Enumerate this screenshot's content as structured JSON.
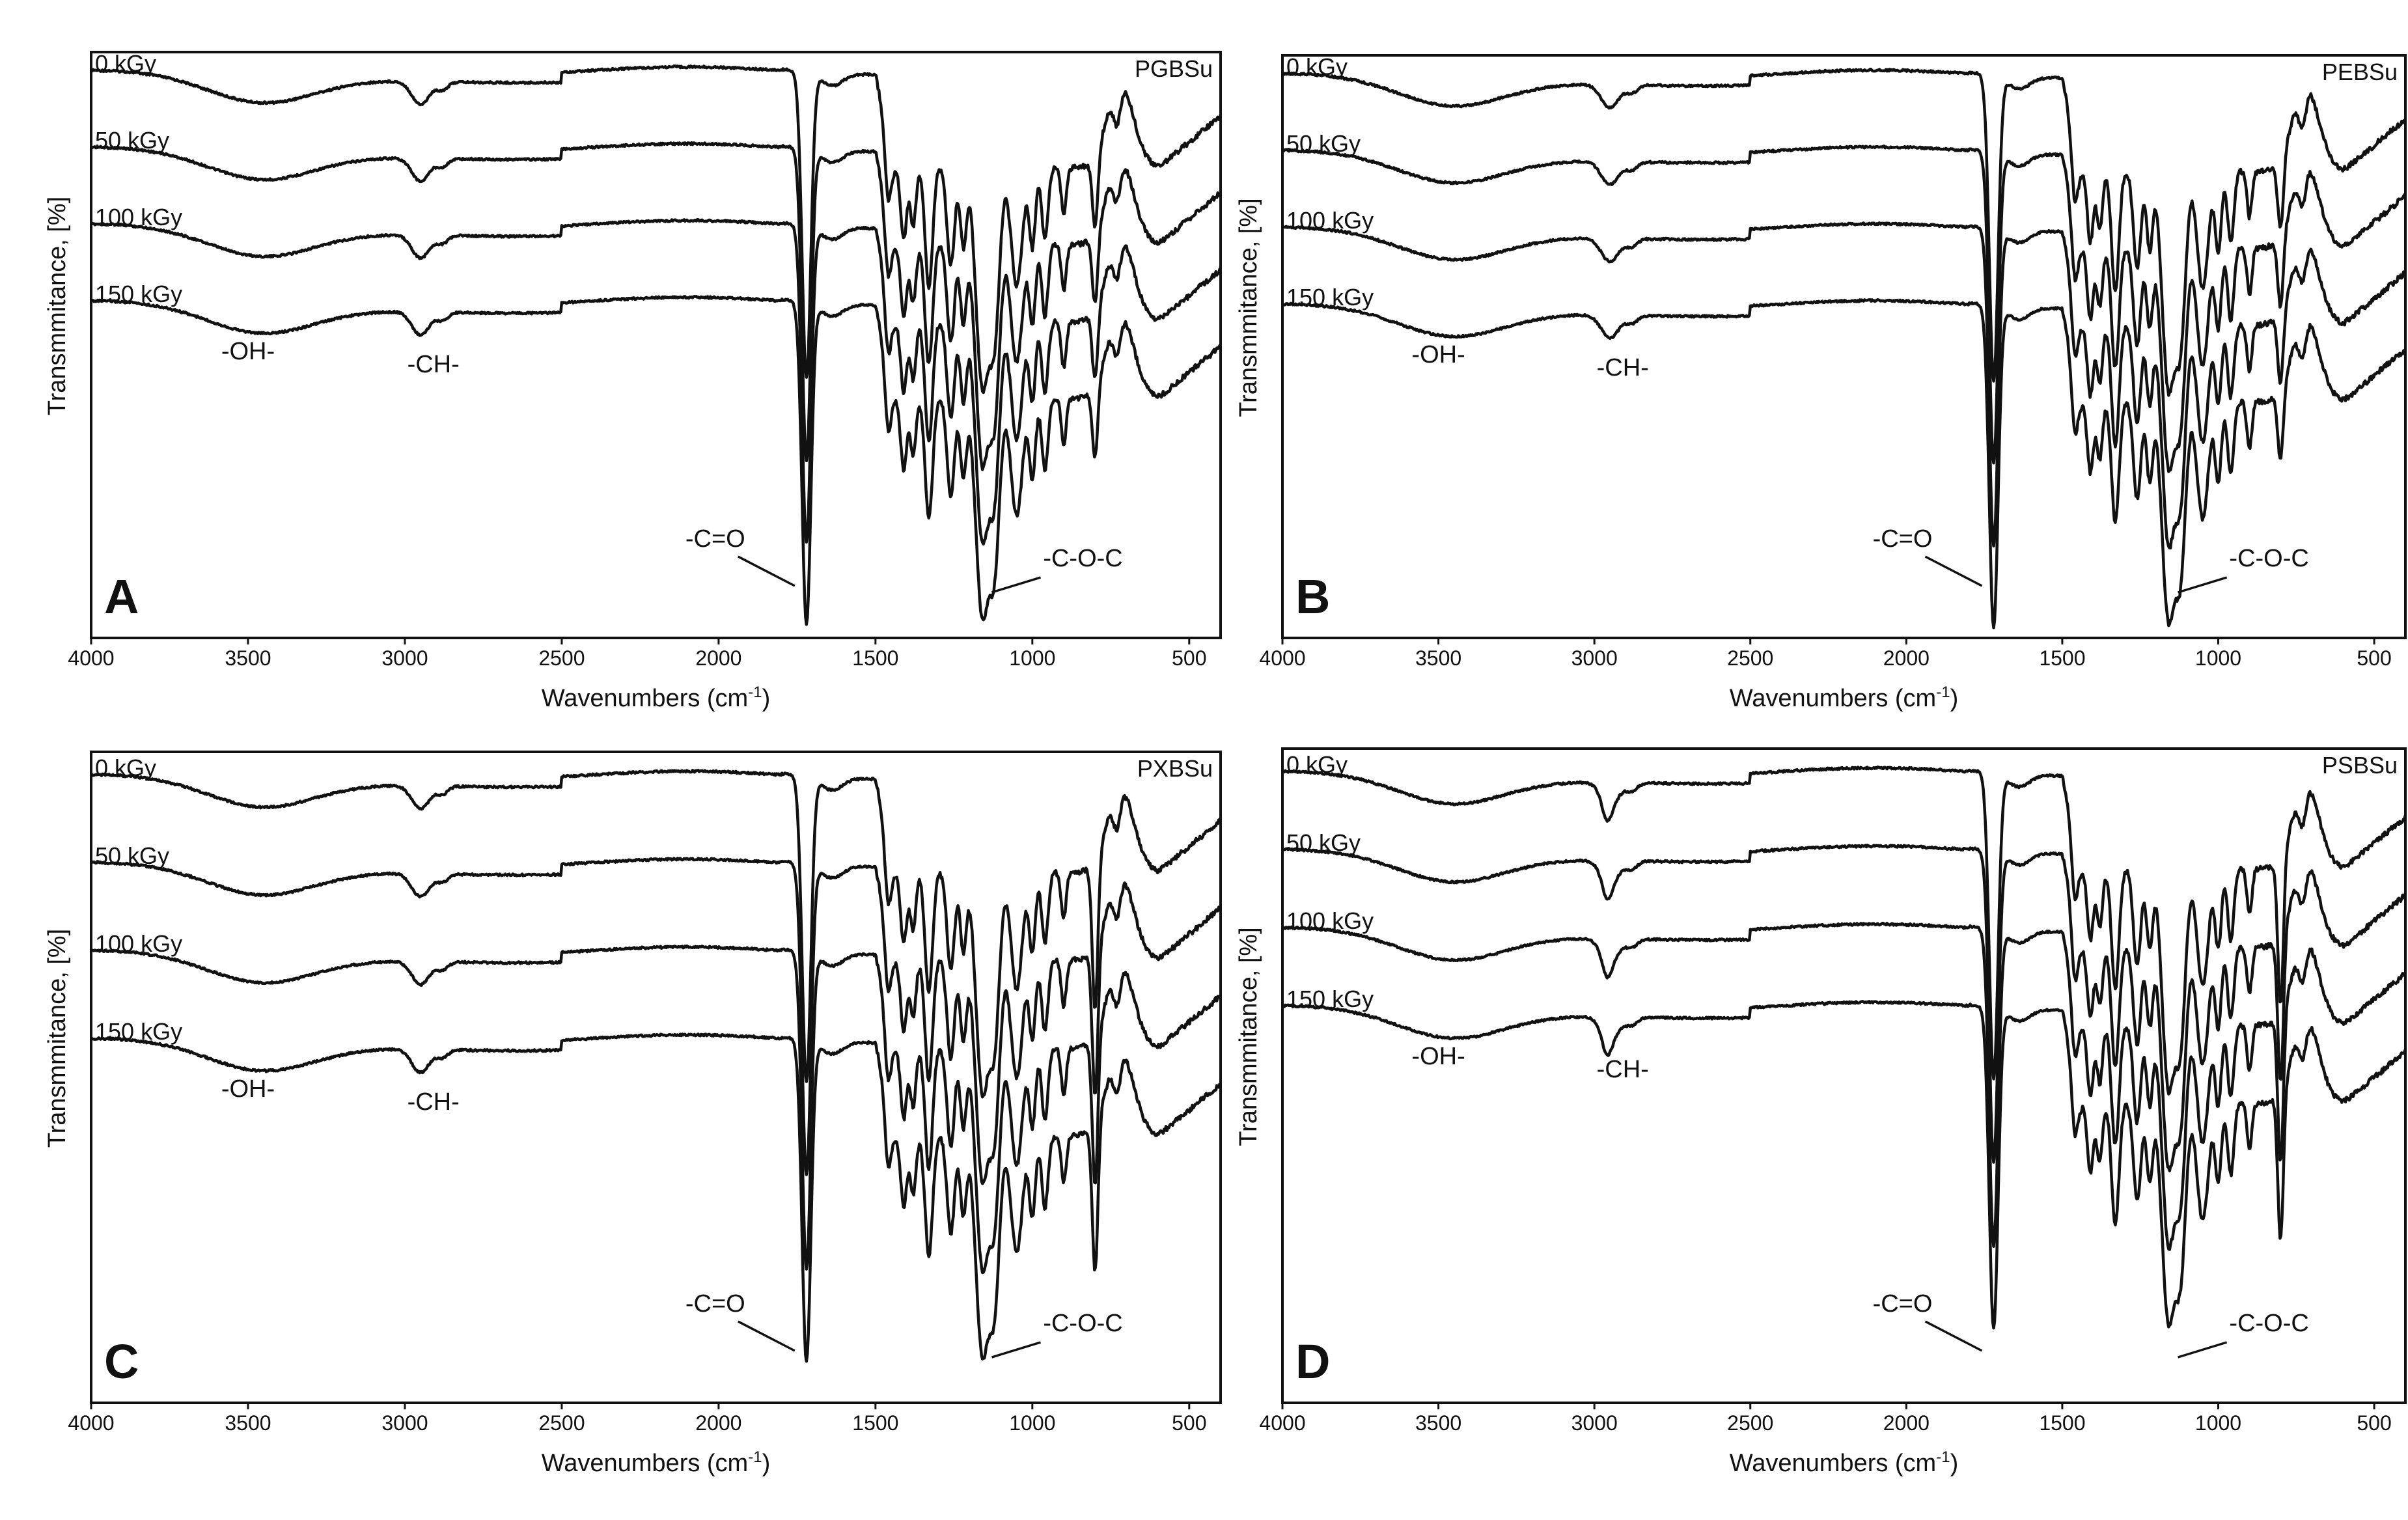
{
  "chart_data": [
    {
      "type": "line",
      "panel": "A",
      "sample": "PGBSu",
      "xlabel": "Wavenumbers (cm",
      "xlabel_sup": "-1",
      "xlabel_close": ")",
      "ylabel": "Transmmitance, [%]",
      "xlim": [
        4000,
        400
      ],
      "x_reversed": true,
      "xticks": [
        "4000",
        "3500",
        "3000",
        "2500",
        "2000",
        "1500",
        "1000",
        "500"
      ],
      "y_values_shown": false,
      "series": [
        {
          "name": "0 kGy"
        },
        {
          "name": "50 kGy"
        },
        {
          "name": "100 kGy"
        },
        {
          "name": "150 kGy"
        }
      ],
      "annotations": [
        {
          "text": "-OH-",
          "x": 3500
        },
        {
          "text": "-CH-",
          "x": 2930
        },
        {
          "text": "-C=O",
          "x": 1720
        },
        {
          "text": "-C-O-C",
          "x": 1150
        }
      ]
    },
    {
      "type": "line",
      "panel": "B",
      "sample": "PEBSu",
      "xlabel": "Wavenumbers (cm",
      "xlabel_sup": "-1",
      "xlabel_close": ")",
      "ylabel": "Transmmitance, [%]",
      "xlim": [
        4000,
        400
      ],
      "x_reversed": true,
      "xticks": [
        "4000",
        "3500",
        "3000",
        "2500",
        "2000",
        "1500",
        "1000",
        "500"
      ],
      "y_values_shown": false,
      "series": [
        {
          "name": "0 kGy"
        },
        {
          "name": "50 kGy"
        },
        {
          "name": "100 kGy"
        },
        {
          "name": "150 kGy"
        }
      ],
      "annotations": [
        {
          "text": "-OH-",
          "x": 3500
        },
        {
          "text": "-CH-",
          "x": 2930
        },
        {
          "text": "-C=O",
          "x": 1720
        },
        {
          "text": "-C-O-C",
          "x": 1150
        }
      ]
    },
    {
      "type": "line",
      "panel": "C",
      "sample": "PXBSu",
      "xlabel": "Wavenumbers (cm",
      "xlabel_sup": "-1",
      "xlabel_close": ")",
      "ylabel": "Transmmitance, [%]",
      "xlim": [
        4000,
        400
      ],
      "x_reversed": true,
      "xticks": [
        "4000",
        "3500",
        "3000",
        "2500",
        "2000",
        "1500",
        "1000",
        "500"
      ],
      "y_values_shown": false,
      "series": [
        {
          "name": "0 kGy"
        },
        {
          "name": "50 kGy"
        },
        {
          "name": "100 kGy"
        },
        {
          "name": "150 kGy"
        }
      ],
      "annotations": [
        {
          "text": "-OH-",
          "x": 3500
        },
        {
          "text": "-CH-",
          "x": 2930
        },
        {
          "text": "-C=O",
          "x": 1720
        },
        {
          "text": "-C-O-C",
          "x": 1150
        }
      ]
    },
    {
      "type": "line",
      "panel": "D",
      "sample": "PSBSu",
      "xlabel": "Wavenumbers (cm",
      "xlabel_sup": "-1",
      "xlabel_close": ")",
      "ylabel": "Transmmitance, [%]",
      "xlim": [
        4000,
        400
      ],
      "x_reversed": true,
      "xticks": [
        "4000",
        "3500",
        "3000",
        "2500",
        "2000",
        "1500",
        "1000",
        "500"
      ],
      "y_values_shown": false,
      "series": [
        {
          "name": "0 kGy"
        },
        {
          "name": "50 kGy"
        },
        {
          "name": "100 kGy"
        },
        {
          "name": "150 kGy"
        }
      ],
      "annotations": [
        {
          "text": "-OH-",
          "x": 3500
        },
        {
          "text": "-CH-",
          "x": 2930
        },
        {
          "text": "-C=O",
          "x": 1720
        },
        {
          "text": "-C-O-C",
          "x": 1150
        }
      ]
    }
  ]
}
